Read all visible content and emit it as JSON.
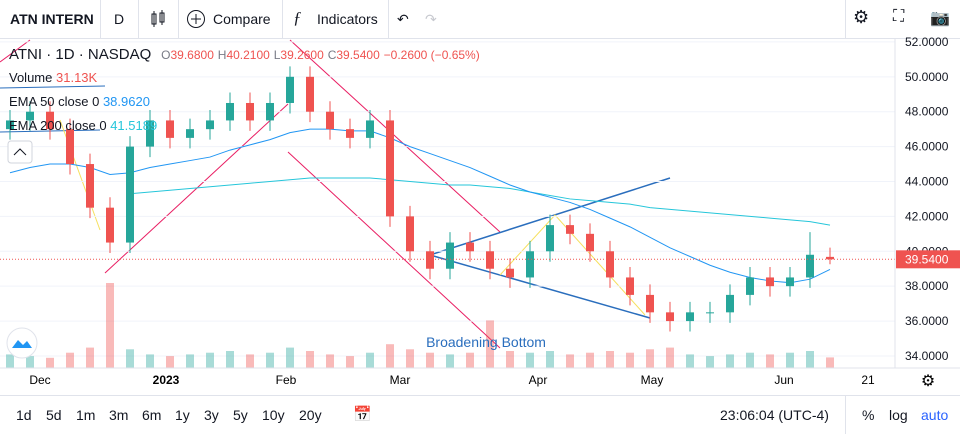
{
  "toolbar": {
    "symbol": "ATN INTERN",
    "interval": "D",
    "compare": "Compare",
    "indicators": "Indicators"
  },
  "legend": {
    "title": "ATNI · 1D · NASDAQ",
    "o_label": "O",
    "o": "39.6800",
    "h_label": "H",
    "h": "40.2100",
    "l_label": "L",
    "l": "39.2600",
    "c_label": "C",
    "c": "39.5400",
    "change": "−0.2600 (−0.65%)",
    "volume_label": "Volume",
    "volume": "31.13K",
    "ema50_label": "EMA 50 close 0",
    "ema50": "38.9620",
    "ema200_label": "EMA 200 close 0",
    "ema200": "41.5189"
  },
  "chart_data": {
    "type": "candlestick",
    "open": [
      47,
      47.5,
      48,
      47,
      45,
      42.5,
      40.5,
      46,
      47.5,
      46.5,
      47,
      47.5,
      48.5,
      47.5,
      48.5,
      50,
      48,
      47,
      46.5,
      47.5,
      42,
      40,
      39,
      40.5,
      40,
      39,
      38.5,
      40,
      41.5,
      41,
      40,
      38.5,
      37.5,
      36.5,
      36,
      36.5,
      36.5,
      37.5,
      38.5,
      38,
      38.5,
      39.68
    ],
    "high": [
      48.1,
      48.6,
      48.6,
      47.6,
      45.6,
      43.1,
      46.6,
      48.1,
      48.1,
      47.6,
      48.1,
      49.1,
      49.1,
      49.1,
      50.6,
      50.6,
      48.6,
      47.6,
      48.1,
      48.1,
      42.6,
      40.6,
      41.1,
      41.1,
      40.6,
      39.6,
      40.6,
      42.1,
      42.1,
      41.6,
      40.6,
      39.1,
      38.1,
      37.1,
      37.1,
      37.1,
      38.1,
      39.1,
      39.1,
      39.1,
      41.1,
      40.21
    ],
    "low": [
      46.4,
      46.9,
      46.4,
      44.4,
      41.9,
      39.9,
      39.9,
      45.4,
      45.9,
      45.9,
      46.4,
      46.9,
      46.9,
      46.9,
      47.9,
      47.4,
      46.4,
      45.9,
      45.9,
      41.4,
      39.4,
      38.4,
      38.4,
      39.4,
      38.4,
      37.9,
      37.9,
      39.4,
      40.4,
      39.4,
      37.9,
      36.9,
      35.9,
      35.4,
      35.4,
      35.9,
      35.9,
      36.9,
      37.4,
      37.4,
      37.9,
      39.26
    ],
    "close": [
      47.5,
      48,
      47,
      45,
      42.5,
      40.5,
      46,
      47.5,
      46.5,
      47,
      47.5,
      48.5,
      47.5,
      48.5,
      50,
      48,
      47,
      46.5,
      47.5,
      42,
      40,
      39,
      40.5,
      40,
      39,
      38.5,
      40,
      41.5,
      41,
      40,
      38.5,
      37.5,
      36.5,
      36,
      36.5,
      36.5,
      37.5,
      38.5,
      38,
      38.5,
      39.8,
      39.54
    ],
    "volume": [
      40,
      35,
      30,
      45,
      60,
      250,
      55,
      40,
      35,
      40,
      45,
      50,
      40,
      45,
      60,
      50,
      40,
      35,
      45,
      70,
      55,
      45,
      40,
      45,
      140,
      50,
      45,
      50,
      40,
      45,
      50,
      45,
      55,
      60,
      40,
      35,
      40,
      45,
      40,
      45,
      50,
      31.13
    ],
    "ema50": [
      44.5,
      44.8,
      45,
      45,
      44.8,
      44.4,
      44.5,
      44.8,
      45,
      45.2,
      45.4,
      45.8,
      46.1,
      46.4,
      46.8,
      47,
      47,
      46.9,
      46.9,
      46.5,
      46,
      45.6,
      45.2,
      44.8,
      44.3,
      43.8,
      43.4,
      43.1,
      42.8,
      42.4,
      41.9,
      41.4,
      40.8,
      40.2,
      39.7,
      39.2,
      38.8,
      38.5,
      38.3,
      38.2,
      38.4,
      38.96
    ],
    "ema200": [
      null,
      null,
      null,
      null,
      null,
      null,
      43.3,
      43.4,
      43.5,
      43.6,
      43.7,
      43.8,
      43.9,
      44,
      44.1,
      44.2,
      44.2,
      44.2,
      44.2,
      44.1,
      44,
      43.9,
      43.8,
      43.8,
      43.7,
      43.6,
      43.4,
      43.2,
      43,
      42.9,
      42.8,
      42.7,
      42.5,
      42.4,
      42.3,
      42.2,
      42.1,
      42,
      41.9,
      41.8,
      41.7,
      41.5
    ],
    "up_color": "#26a69a",
    "down_color": "#ef5350",
    "ema50_color": "#2196f3",
    "ema200_color": "#26c6da",
    "ylim": [
      33.31,
      52.11
    ],
    "yticks": [
      {
        "value": 34,
        "label": "34.0000"
      },
      {
        "value": 36,
        "label": "36.0000"
      },
      {
        "value": 38,
        "label": "38.0000"
      },
      {
        "value": 40,
        "label": "40.0000"
      },
      {
        "value": 42,
        "label": "42.0000"
      },
      {
        "value": 44,
        "label": "44.0000"
      },
      {
        "value": 46,
        "label": "46.0000"
      },
      {
        "value": 48,
        "label": "48.0000"
      },
      {
        "value": 50,
        "label": "50.0000"
      },
      {
        "value": 52,
        "label": "52.0000"
      }
    ],
    "last_price": {
      "value": 39.54,
      "label": "39.5400"
    },
    "x_labels": [
      "Dec",
      "2023",
      "Feb",
      "Mar",
      "Apr",
      "May",
      "Jun",
      "21"
    ],
    "annotation": "Broadening Bottom"
  },
  "bottom_bar": {
    "ranges": [
      "1d",
      "5d",
      "1m",
      "3m",
      "6m",
      "1y",
      "3y",
      "5y",
      "10y",
      "20y"
    ],
    "time": "23:06:04 (UTC-4)",
    "percent": "%",
    "log": "log",
    "auto": "auto"
  }
}
